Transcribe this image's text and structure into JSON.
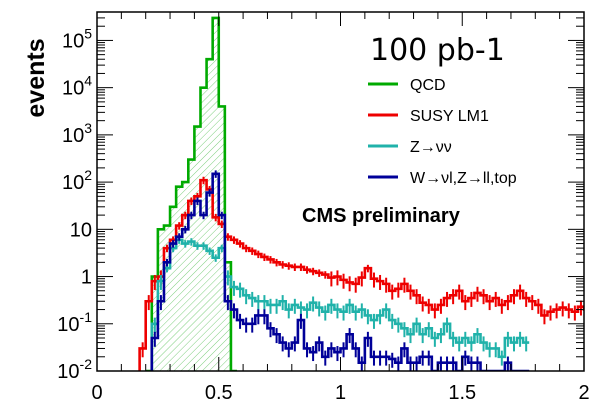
{
  "chart_data": {
    "type": "line",
    "step": true,
    "ylabel": "events",
    "yscale": "log",
    "xlim": [
      0,
      2
    ],
    "ylim": [
      0.01,
      400000
    ],
    "x_tick_labels": [
      "0",
      "0.5",
      "1",
      "1.5",
      "2"
    ],
    "x_tick_values": [
      0,
      0.5,
      1,
      1.5,
      2
    ],
    "y_tick_labels": [
      {
        "base": "10",
        "exp": "-2",
        "value": 0.01
      },
      {
        "base": "10",
        "exp": "-1",
        "value": 0.1
      },
      {
        "base": "1",
        "exp": "",
        "value": 1
      },
      {
        "base": "10",
        "exp": "",
        "value": 10
      },
      {
        "base": "10",
        "exp": "2",
        "value": 100
      },
      {
        "base": "10",
        "exp": "3",
        "value": 1000
      },
      {
        "base": "10",
        "exp": "4",
        "value": 10000
      },
      {
        "base": "10",
        "exp": "5",
        "value": 100000
      }
    ],
    "luminosity": "100 pb-1",
    "annotation": "CMS preliminary",
    "bin_width": 0.025,
    "series": [
      {
        "name": "QCD",
        "color": "#00aa00",
        "fill": "hatched",
        "x_start": 0.2,
        "values": [
          0,
          1,
          10,
          12,
          30,
          80,
          100,
          300,
          1500,
          10000,
          40000,
          300000,
          4000,
          2,
          0
        ]
      },
      {
        "name": "SUSY LM1",
        "color": "#ee0000",
        "x_start": 0.175,
        "values": [
          0.03,
          0.3,
          0.8,
          1,
          4,
          6,
          12,
          20,
          40,
          50,
          110,
          70,
          18,
          13,
          7,
          6,
          5,
          4,
          3.5,
          3,
          2.6,
          2.3,
          2,
          1.8,
          1.7,
          1.6,
          1.6,
          1.4,
          1.3,
          1.2,
          1.1,
          0.95,
          1.0,
          0.85,
          0.75,
          0.7,
          0.95,
          1.5,
          0.9,
          0.8,
          0.7,
          0.5,
          0.55,
          0.7,
          0.5,
          0.4,
          0.28,
          0.25,
          0.2,
          0.25,
          0.35,
          0.4,
          0.5,
          0.3,
          0.35,
          0.45,
          0.4,
          0.3,
          0.35,
          0.25,
          0.3,
          0.4,
          0.5,
          0.35,
          0.3,
          0.25,
          0.15,
          0.18,
          0.2,
          0.22,
          0.2,
          0.18,
          0.23,
          0.2,
          0.16
        ]
      },
      {
        "name": "Z→νν",
        "color": "#20b2aa",
        "x_start": 0.225,
        "values": [
          0.1,
          0.8,
          1.5,
          4,
          6,
          5,
          5.5,
          4.5,
          4.5,
          3.5,
          2.5,
          4,
          1,
          0.6,
          0.55,
          0.4,
          0.35,
          0.3,
          0.3,
          0.25,
          0.25,
          0.3,
          0.2,
          0.25,
          0.22,
          0.2,
          0.28,
          0.22,
          0.18,
          0.25,
          0.2,
          0.18,
          0.25,
          0.18,
          0.2,
          0.15,
          0.12,
          0.15,
          0.2,
          0.12,
          0.1,
          0.08,
          0.06,
          0.1,
          0.06,
          0.08,
          0.05,
          0.06,
          0.1,
          0.05,
          0.04,
          0.05,
          0.04,
          0.06,
          0.04,
          0.03,
          0.03,
          0.02,
          0.05,
          0.04,
          0.05,
          0.04
        ]
      },
      {
        "name": "W→νl,Z→ll,top",
        "color": "#000099",
        "x_start": 0.225,
        "values": [
          0.05,
          0.3,
          2,
          5,
          7,
          10,
          20,
          40,
          20,
          60,
          150,
          20,
          0.3,
          0.2,
          0.12,
          0.1,
          0.1,
          0.15,
          0.15,
          0.08,
          0.06,
          0.04,
          0.03,
          0.04,
          0.12,
          0.03,
          0.025,
          0.04,
          0.02,
          0.03,
          0.025,
          0.03,
          0.06,
          0.03,
          0.015,
          0.05,
          0.02,
          0.02,
          0.02,
          0.018,
          0.015,
          0.03,
          0.015,
          0.015,
          0.02,
          0.02,
          0.01,
          0.015,
          0.015,
          0.015,
          0.01,
          0.02,
          0.015,
          0.015,
          0.01,
          0.01,
          0.01,
          0.01,
          0.015,
          0.01,
          0.01,
          0.01
        ]
      }
    ]
  }
}
